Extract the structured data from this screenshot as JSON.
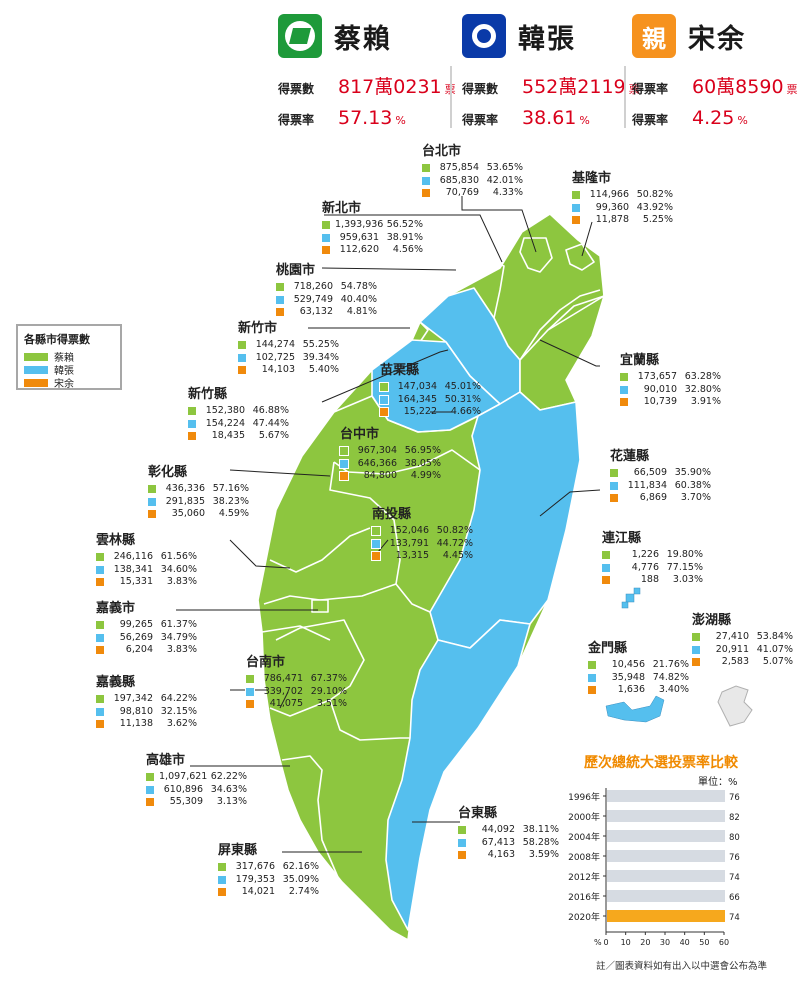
{
  "header": {
    "candidates": [
      {
        "id": "dpp",
        "name": "蔡賴",
        "logo_icon": "dpp-logo-icon",
        "logo_color": "#1e9a3a",
        "stat1_label": "得票數",
        "stat1_value": "817萬0231",
        "stat1_unit": "票",
        "stat2_label": "得票率",
        "stat2_value": "57.13",
        "stat2_unit": "%"
      },
      {
        "id": "kmt",
        "name": "韓張",
        "logo_icon": "kmt-logo-icon",
        "logo_color": "#0a3aa8",
        "stat1_label": "得票數",
        "stat1_value": "552萬2119",
        "stat1_unit": "票",
        "stat2_label": "得票率",
        "stat2_value": "38.61",
        "stat2_unit": "%"
      },
      {
        "id": "pfp",
        "name": "宋余",
        "logo_icon": "pfp-logo-icon",
        "logo_text": "親",
        "logo_color": "#f6921e",
        "stat1_label": "得票率",
        "stat1_value": "60萬8590",
        "stat1_unit": "票",
        "stat2_label": "得票率",
        "stat2_value": "4.25",
        "stat2_unit": "%"
      }
    ]
  },
  "colors": {
    "green": "#8dc63f",
    "blue": "#55bfee",
    "orange": "#f08a0c",
    "border": "#ffffff",
    "value_red": "#d9001b"
  },
  "legend": {
    "title": "各縣市得票數",
    "items": [
      "蔡賴",
      "韓張",
      "宋余"
    ]
  },
  "counties": [
    {
      "name": "台北市",
      "rows": [
        [
          "875,854",
          "53.65%"
        ],
        [
          "685,830",
          "42.01%"
        ],
        [
          "70,769",
          "4.33%"
        ]
      ]
    },
    {
      "name": "基隆市",
      "rows": [
        [
          "114,966",
          "50.82%"
        ],
        [
          "99,360",
          "43.92%"
        ],
        [
          "11,878",
          "5.25%"
        ]
      ]
    },
    {
      "name": "新北市",
      "rows": [
        [
          "1,393,936",
          "56.52%"
        ],
        [
          "959,631",
          "38.91%"
        ],
        [
          "112,620",
          "4.56%"
        ]
      ]
    },
    {
      "name": "桃園市",
      "rows": [
        [
          "718,260",
          "54.78%"
        ],
        [
          "529,749",
          "40.40%"
        ],
        [
          "63,132",
          "4.81%"
        ]
      ]
    },
    {
      "name": "新竹市",
      "rows": [
        [
          "144,274",
          "55.25%"
        ],
        [
          "102,725",
          "39.34%"
        ],
        [
          "14,103",
          "5.40%"
        ]
      ]
    },
    {
      "name": "宜蘭縣",
      "rows": [
        [
          "173,657",
          "63.28%"
        ],
        [
          "90,010",
          "32.80%"
        ],
        [
          "10,739",
          "3.91%"
        ]
      ]
    },
    {
      "name": "苗栗縣",
      "rows": [
        [
          "147,034",
          "45.01%"
        ],
        [
          "164,345",
          "50.31%"
        ],
        [
          "15,222",
          "4.66%"
        ]
      ]
    },
    {
      "name": "新竹縣",
      "rows": [
        [
          "152,380",
          "46.88%"
        ],
        [
          "154,224",
          "47.44%"
        ],
        [
          "18,435",
          "5.67%"
        ]
      ]
    },
    {
      "name": "台中市",
      "rows": [
        [
          "967,304",
          "56.95%"
        ],
        [
          "646,366",
          "38.05%"
        ],
        [
          "84,800",
          "4.99%"
        ]
      ]
    },
    {
      "name": "花蓮縣",
      "rows": [
        [
          "66,509",
          "35.90%"
        ],
        [
          "111,834",
          "60.38%"
        ],
        [
          "6,869",
          "3.70%"
        ]
      ]
    },
    {
      "name": "彰化縣",
      "rows": [
        [
          "436,336",
          "57.16%"
        ],
        [
          "291,835",
          "38.23%"
        ],
        [
          "35,060",
          "4.59%"
        ]
      ]
    },
    {
      "name": "南投縣",
      "rows": [
        [
          "152,046",
          "50.82%"
        ],
        [
          "133,791",
          "44.72%"
        ],
        [
          "13,315",
          "4.45%"
        ]
      ]
    },
    {
      "name": "雲林縣",
      "rows": [
        [
          "246,116",
          "61.56%"
        ],
        [
          "138,341",
          "34.60%"
        ],
        [
          "15,331",
          "3.83%"
        ]
      ]
    },
    {
      "name": "連江縣",
      "rows": [
        [
          "1,226",
          "19.80%"
        ],
        [
          "4,776",
          "77.15%"
        ],
        [
          "188",
          "3.03%"
        ]
      ]
    },
    {
      "name": "嘉義市",
      "rows": [
        [
          "99,265",
          "61.37%"
        ],
        [
          "56,269",
          "34.79%"
        ],
        [
          "6,204",
          "3.83%"
        ]
      ]
    },
    {
      "name": "澎湖縣",
      "rows": [
        [
          "27,410",
          "53.84%"
        ],
        [
          "20,911",
          "41.07%"
        ],
        [
          "2,583",
          "5.07%"
        ]
      ]
    },
    {
      "name": "金門縣",
      "rows": [
        [
          "10,456",
          "21.76%"
        ],
        [
          "35,948",
          "74.82%"
        ],
        [
          "1,636",
          "3.40%"
        ]
      ]
    },
    {
      "name": "台南市",
      "rows": [
        [
          "786,471",
          "67.37%"
        ],
        [
          "339,702",
          "29.10%"
        ],
        [
          "41,075",
          "3.51%"
        ]
      ]
    },
    {
      "name": "嘉義縣",
      "rows": [
        [
          "197,342",
          "64.22%"
        ],
        [
          "98,810",
          "32.15%"
        ],
        [
          "11,138",
          "3.62%"
        ]
      ]
    },
    {
      "name": "高雄市",
      "rows": [
        [
          "1,097,621",
          "62.22%"
        ],
        [
          "610,896",
          "34.63%"
        ],
        [
          "55,309",
          "3.13%"
        ]
      ]
    },
    {
      "name": "台東縣",
      "rows": [
        [
          "44,092",
          "38.11%"
        ],
        [
          "67,413",
          "58.28%"
        ],
        [
          "4,163",
          "3.59%"
        ]
      ]
    },
    {
      "name": "屏東縣",
      "rows": [
        [
          "317,676",
          "62.16%"
        ],
        [
          "179,353",
          "35.09%"
        ],
        [
          "14,021",
          "2.74%"
        ]
      ]
    }
  ],
  "turnout": {
    "title": "歷次總統大選投票率比較",
    "unit": "單位：%",
    "note": "註／圖表資料如有出入以中選會公布為準",
    "axis_unit": "%",
    "chart_data": {
      "type": "bar",
      "orientation": "horizontal",
      "categories": [
        "1996年",
        "2000年",
        "2004年",
        "2008年",
        "2012年",
        "2016年",
        "2020年"
      ],
      "values": [
        76.04,
        82.69,
        80.28,
        76.33,
        74.38,
        66.27,
        74.9
      ],
      "value_labels": [
        "76.04",
        "82.69",
        "80.28",
        "76.33",
        "74.38",
        "66.27",
        "74.90"
      ],
      "xticks": [
        "0",
        "10",
        "20",
        "30",
        "40",
        "50",
        "60"
      ],
      "xlim": [
        0,
        60
      ],
      "highlight": "2020年",
      "bar_color": "#d6dbe2",
      "highlight_color": "#f6a81d"
    }
  }
}
